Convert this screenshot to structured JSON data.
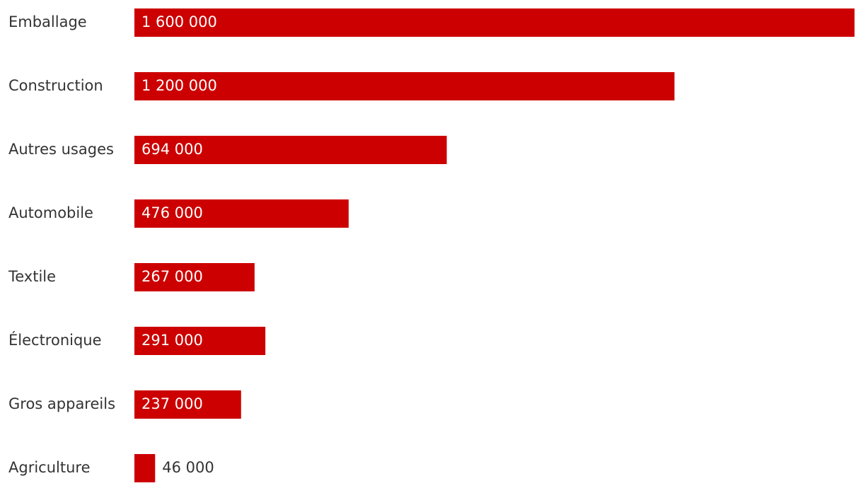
{
  "chart_data": {
    "type": "bar",
    "orientation": "horizontal",
    "categories": [
      "Emballage",
      "Construction",
      "Autres usages",
      "Automobile",
      "Textile",
      "Électronique",
      "Gros appareils",
      "Agriculture"
    ],
    "values": [
      1600000,
      1200000,
      694000,
      476000,
      267000,
      291000,
      237000,
      46000
    ],
    "value_labels": [
      "1 600 000",
      "1 200 000",
      "694 000",
      "476 000",
      "267 000",
      "291 000",
      "237 000",
      "46 000"
    ],
    "color": "#cc0000"
  }
}
